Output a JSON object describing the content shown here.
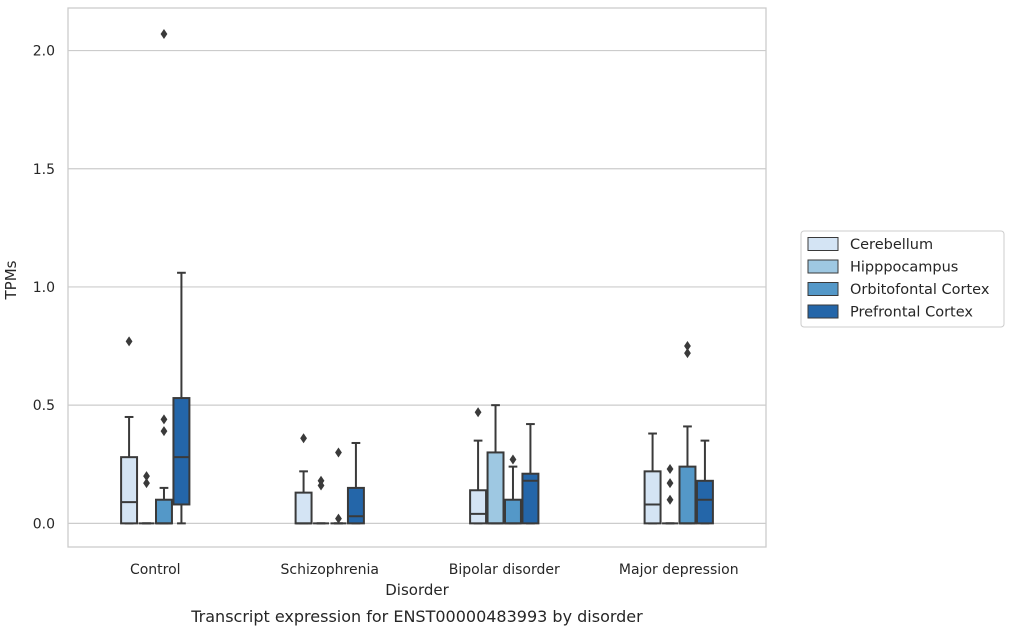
{
  "chart_data": {
    "type": "box",
    "title": "",
    "caption": "Transcript expression for ENST00000483993 by disorder",
    "xlabel": "Disorder",
    "ylabel": "TPMs",
    "ylim": [
      -0.1,
      2.18
    ],
    "yticks": [
      "0.0",
      "0.5",
      "1.0",
      "1.5",
      "2.0"
    ],
    "grid": true,
    "legend_position": "right",
    "categories": [
      "Control",
      "Schizophrenia",
      "Bipolar disorder",
      "Major depression"
    ],
    "series": [
      {
        "name": "Cerebellum",
        "color": "#d4e4f4",
        "boxes": [
          {
            "whislo": 0.0,
            "q1": 0.0,
            "med": 0.09,
            "q3": 0.28,
            "whishi": 0.45,
            "fliers": [
              0.77
            ]
          },
          {
            "whislo": 0.0,
            "q1": 0.0,
            "med": 0.0,
            "q3": 0.13,
            "whishi": 0.22,
            "fliers": [
              0.36
            ]
          },
          {
            "whislo": 0.0,
            "q1": 0.0,
            "med": 0.04,
            "q3": 0.14,
            "whishi": 0.35,
            "fliers": [
              0.47
            ]
          },
          {
            "whislo": 0.0,
            "q1": 0.0,
            "med": 0.08,
            "q3": 0.22,
            "whishi": 0.38,
            "fliers": []
          }
        ]
      },
      {
        "name": "Hipppocampus",
        "color": "#9ec8e2",
        "boxes": [
          {
            "whislo": 0.0,
            "q1": 0.0,
            "med": 0.0,
            "q3": 0.0,
            "whishi": 0.0,
            "fliers": [
              0.17,
              0.2
            ]
          },
          {
            "whislo": 0.0,
            "q1": 0.0,
            "med": 0.0,
            "q3": 0.0,
            "whishi": 0.0,
            "fliers": [
              0.16,
              0.18
            ]
          },
          {
            "whislo": 0.0,
            "q1": 0.0,
            "med": 0.0,
            "q3": 0.3,
            "whishi": 0.5,
            "fliers": []
          },
          {
            "whislo": 0.0,
            "q1": 0.0,
            "med": 0.0,
            "q3": 0.0,
            "whishi": 0.0,
            "fliers": [
              0.1,
              0.17,
              0.23
            ]
          }
        ]
      },
      {
        "name": "Orbitofontal Cortex",
        "color": "#5498c8",
        "boxes": [
          {
            "whislo": 0.0,
            "q1": 0.0,
            "med": 0.0,
            "q3": 0.1,
            "whishi": 0.15,
            "fliers": [
              0.39,
              0.44,
              2.07
            ]
          },
          {
            "whislo": 0.0,
            "q1": 0.0,
            "med": 0.0,
            "q3": 0.0,
            "whishi": 0.0,
            "fliers": [
              0.02,
              0.3
            ]
          },
          {
            "whislo": 0.0,
            "q1": 0.0,
            "med": 0.0,
            "q3": 0.1,
            "whishi": 0.24,
            "fliers": [
              0.27
            ]
          },
          {
            "whislo": 0.0,
            "q1": 0.0,
            "med": 0.0,
            "q3": 0.24,
            "whishi": 0.41,
            "fliers": [
              0.72,
              0.75
            ]
          }
        ]
      },
      {
        "name": "Prefrontal Cortex",
        "color": "#2466a9",
        "boxes": [
          {
            "whislo": 0.0,
            "q1": 0.08,
            "med": 0.28,
            "q3": 0.53,
            "whishi": 1.06,
            "fliers": []
          },
          {
            "whislo": 0.0,
            "q1": 0.0,
            "med": 0.03,
            "q3": 0.15,
            "whishi": 0.34,
            "fliers": []
          },
          {
            "whislo": 0.0,
            "q1": 0.0,
            "med": 0.18,
            "q3": 0.21,
            "whishi": 0.42,
            "fliers": []
          },
          {
            "whislo": 0.0,
            "q1": 0.0,
            "med": 0.1,
            "q3": 0.18,
            "whishi": 0.35,
            "fliers": []
          }
        ]
      }
    ]
  }
}
